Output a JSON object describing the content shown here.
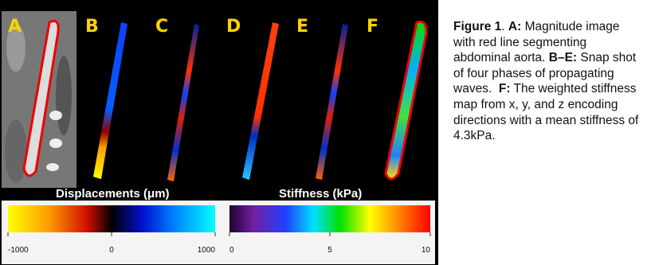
{
  "figure": {
    "panel_labels": [
      "A",
      "B",
      "C",
      "D",
      "E",
      "F"
    ],
    "colorbars": [
      {
        "title": "Displacements (μm)",
        "lim": [
          -1000,
          1000
        ],
        "ticks": [
          -1000,
          0,
          1000
        ]
      },
      {
        "title": "Stiffness (kPa)",
        "lim": [
          0,
          10
        ],
        "ticks": [
          0,
          5,
          10
        ]
      }
    ],
    "caption": [
      {
        "text": "Figure 1",
        "bold": true
      },
      {
        "text": ". ",
        "bold": false
      },
      {
        "text": "A:",
        "bold": true
      },
      {
        "text": " Magnitude image with red line segmenting abdominal aorta. ",
        "bold": false
      },
      {
        "text": "B–E:",
        "bold": true
      },
      {
        "text": " Snap shot of four phases of propagating waves.  ",
        "bold": false
      },
      {
        "text": "F:",
        "bold": true
      },
      {
        "text": " The weighted stiffness map from x, y, and z encoding directions with a mean stiffness of 4.3kPa.",
        "bold": false
      }
    ]
  }
}
